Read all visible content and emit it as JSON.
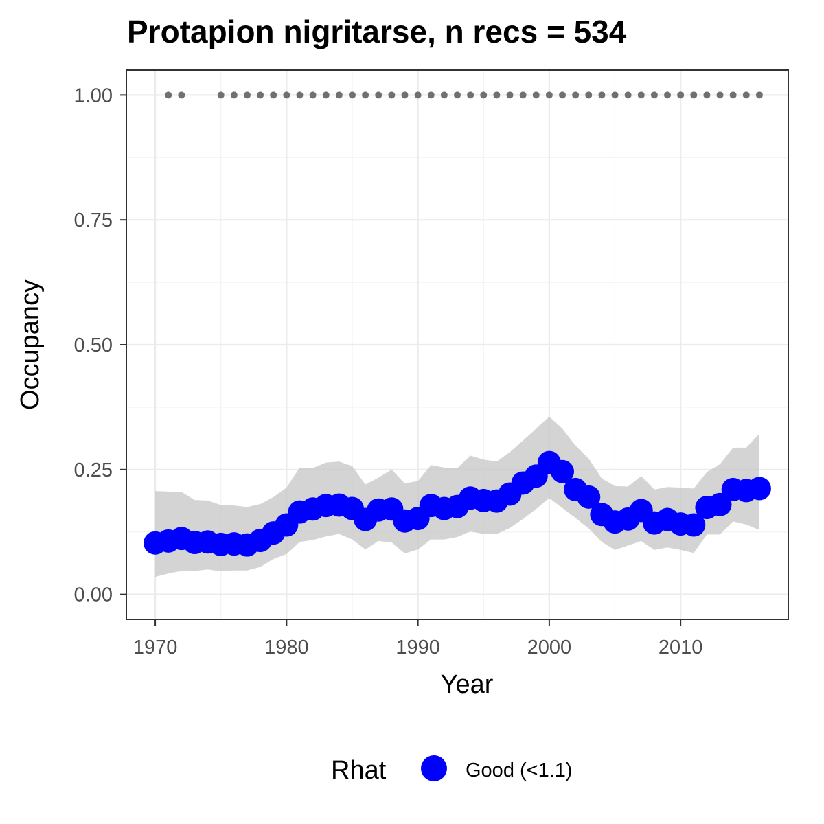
{
  "chart_data": {
    "type": "line",
    "title": "Protapion nigritarse, n recs = 534",
    "xlabel": "Year",
    "ylabel": "Occupancy",
    "xlim": [
      1967.8,
      2018.2
    ],
    "ylim": [
      -0.05,
      1.05
    ],
    "x_ticks": [
      1970,
      1980,
      1990,
      2000,
      2010
    ],
    "y_ticks": [
      0.0,
      0.25,
      0.5,
      0.75,
      1.0
    ],
    "x_tick_labels": [
      "1970",
      "1980",
      "1990",
      "2000",
      "2010"
    ],
    "y_tick_labels": [
      "0.00",
      "0.25",
      "0.50",
      "0.75",
      "1.00"
    ],
    "grid": true,
    "legend": {
      "title": "Rhat",
      "position": "bottom",
      "entries": [
        {
          "label": "Good (<1.1)",
          "color": "#0000ff"
        }
      ]
    },
    "series": [
      {
        "name": "Good (<1.1)",
        "color": "#0000ff",
        "x": [
          1970,
          1971,
          1972,
          1973,
          1974,
          1975,
          1976,
          1977,
          1978,
          1979,
          1980,
          1981,
          1982,
          1983,
          1984,
          1985,
          1986,
          1987,
          1988,
          1989,
          1990,
          1991,
          1992,
          1993,
          1994,
          1995,
          1996,
          1997,
          1998,
          1999,
          2000,
          2001,
          2002,
          2003,
          2004,
          2005,
          2006,
          2007,
          2008,
          2009,
          2010,
          2011,
          2012,
          2013,
          2014,
          2015,
          2016
        ],
        "mean": [
          0.103,
          0.107,
          0.112,
          0.104,
          0.105,
          0.1,
          0.101,
          0.099,
          0.108,
          0.123,
          0.139,
          0.165,
          0.171,
          0.178,
          0.179,
          0.172,
          0.15,
          0.169,
          0.171,
          0.147,
          0.152,
          0.178,
          0.172,
          0.176,
          0.193,
          0.188,
          0.187,
          0.201,
          0.223,
          0.237,
          0.264,
          0.246,
          0.21,
          0.195,
          0.16,
          0.145,
          0.151,
          0.168,
          0.143,
          0.15,
          0.141,
          0.139,
          0.174,
          0.18,
          0.21,
          0.208,
          0.212
        ],
        "lower": [
          0.035,
          0.042,
          0.047,
          0.047,
          0.05,
          0.046,
          0.048,
          0.048,
          0.055,
          0.071,
          0.081,
          0.105,
          0.109,
          0.116,
          0.121,
          0.11,
          0.09,
          0.107,
          0.104,
          0.082,
          0.09,
          0.11,
          0.11,
          0.115,
          0.126,
          0.121,
          0.121,
          0.133,
          0.151,
          0.171,
          0.193,
          0.173,
          0.153,
          0.132,
          0.105,
          0.089,
          0.098,
          0.107,
          0.089,
          0.094,
          0.089,
          0.083,
          0.12,
          0.12,
          0.146,
          0.14,
          0.129
        ],
        "upper": [
          0.207,
          0.206,
          0.205,
          0.189,
          0.188,
          0.179,
          0.178,
          0.175,
          0.181,
          0.195,
          0.214,
          0.254,
          0.253,
          0.264,
          0.266,
          0.257,
          0.22,
          0.234,
          0.25,
          0.222,
          0.227,
          0.259,
          0.254,
          0.253,
          0.278,
          0.27,
          0.266,
          0.285,
          0.308,
          0.332,
          0.356,
          0.332,
          0.298,
          0.272,
          0.232,
          0.217,
          0.216,
          0.237,
          0.21,
          0.215,
          0.214,
          0.212,
          0.245,
          0.261,
          0.294,
          0.294,
          0.322
        ]
      }
    ],
    "rug": {
      "y": 1.0,
      "color": "#707070",
      "years": [
        1971,
        1972,
        1975,
        1976,
        1977,
        1978,
        1979,
        1980,
        1981,
        1982,
        1983,
        1984,
        1985,
        1986,
        1987,
        1988,
        1989,
        1990,
        1991,
        1992,
        1993,
        1994,
        1995,
        1996,
        1997,
        1998,
        1999,
        2000,
        2001,
        2002,
        2003,
        2004,
        2005,
        2006,
        2007,
        2008,
        2009,
        2010,
        2011,
        2012,
        2013,
        2014,
        2015,
        2016
      ]
    }
  }
}
